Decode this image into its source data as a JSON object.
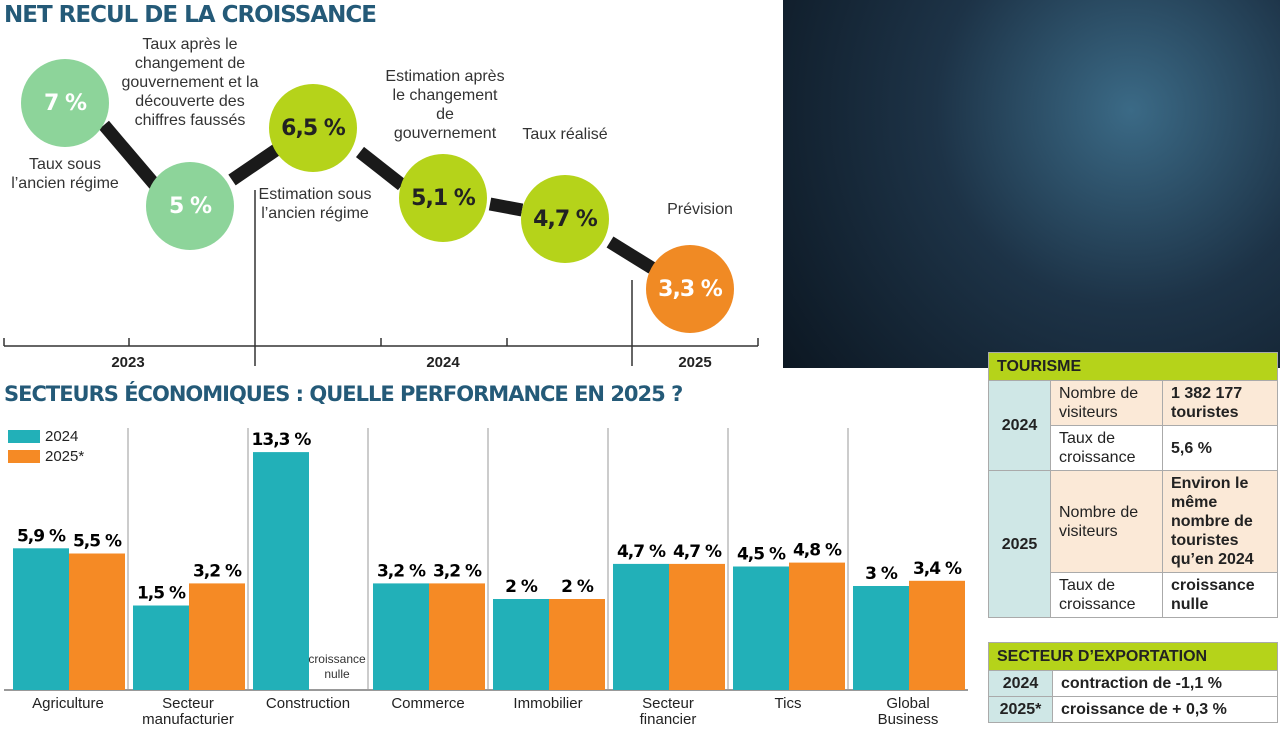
{
  "growth": {
    "title": "NET RECUL DE LA CROISSANCE",
    "points": [
      {
        "value": "7 %",
        "label": "Taux sous l’ancien régime",
        "color": "#8dd49a",
        "text": "#fff"
      },
      {
        "value": "5 %",
        "label": "Taux après le changement de gouvernement et la découverte des chiffres faussés",
        "color": "#8dd49a",
        "text": "#fff"
      },
      {
        "value": "6,5 %",
        "label": "Estimation sous l’ancien régime",
        "color": "#b5d31a",
        "text": "#222"
      },
      {
        "value": "5,1 %",
        "label": "Estimation après le changement de gouvernement",
        "color": "#b5d31a",
        "text": "#222"
      },
      {
        "value": "4,7 %",
        "label": "Taux réalisé",
        "color": "#b5d31a",
        "text": "#222"
      },
      {
        "value": "3,3 %",
        "label": "Prévision",
        "color": "#f08a24",
        "text": "#fff"
      }
    ],
    "years": [
      "2023",
      "2024",
      "2025"
    ]
  },
  "chart_data": {
    "type": "bar",
    "title": "SECTEURS ÉCONOMIQUES : QUELLE PERFORMANCE EN 2025 ?",
    "categories": [
      "Agriculture",
      "Secteur manufacturier",
      "Construction",
      "Commerce",
      "Immobilier",
      "Secteur financier",
      "Tics",
      "Global Business"
    ],
    "series": [
      {
        "name": "2024",
        "color": "#22b0b8",
        "values": [
          5.9,
          1.5,
          13.3,
          3.2,
          2,
          4.7,
          4.5,
          3
        ],
        "labels": [
          "5,9 %",
          "1,5 %",
          "13,3 %",
          "3,2 %",
          "2 %",
          "4,7 %",
          "4,5 %",
          "3 %"
        ]
      },
      {
        "name": "2025*",
        "color": "#f58a25",
        "values": [
          5.5,
          3.2,
          null,
          3.2,
          2,
          4.7,
          4.8,
          3.4
        ],
        "labels": [
          "5,5 %",
          "3,2 %",
          "croissance nulle",
          "3,2 %",
          "2 %",
          "4,7 %",
          "4,8 %",
          "3,4 %"
        ]
      }
    ],
    "legend": "top-left"
  },
  "tourisme": {
    "title": "TOURISME",
    "y2024": "2024",
    "y2025": "2025",
    "visitors_label": "Nombre de visiteurs",
    "rate_label": "Taux de croissance",
    "v2024": "1 382 177 touristes",
    "r2024": "5,6 %",
    "v2025": "Environ le même nombre de touristes qu’en 2024",
    "r2025": "croissance nulle"
  },
  "export": {
    "title": "SECTEUR D’EXPORTATION",
    "rows": [
      {
        "year": "2024",
        "text": "contraction de -1,1 %"
      },
      {
        "year": "2025*",
        "text": "croissance de + 0,3 %"
      }
    ]
  }
}
